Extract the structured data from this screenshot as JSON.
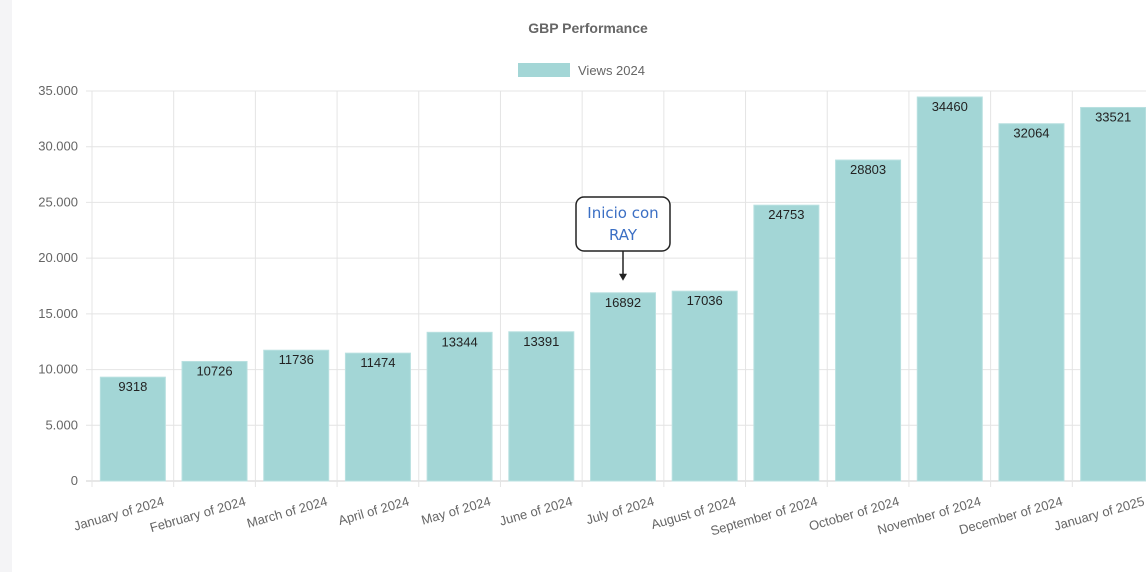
{
  "chart_data": {
    "type": "bar",
    "title": "GBP Performance",
    "categories": [
      "January of 2024",
      "February of 2024",
      "March of 2024",
      "April of 2024",
      "May of 2024",
      "June of 2024",
      "July of 2024",
      "August of 2024",
      "September of 2024",
      "October of 2024",
      "November of 2024",
      "December of 2024",
      "January of 2025"
    ],
    "series": [
      {
        "name": "Views 2024",
        "color": "#a3d6d6",
        "values": [
          9318,
          10726,
          11736,
          11474,
          13344,
          13391,
          16892,
          17036,
          24753,
          28803,
          34460,
          32064,
          33521
        ]
      }
    ],
    "ylim": [
      0,
      35000
    ],
    "yticks": [
      0,
      5000,
      10000,
      15000,
      20000,
      25000,
      30000,
      35000
    ],
    "ytick_labels": [
      "0",
      "5.000",
      "10.000",
      "15.000",
      "20.000",
      "25.000",
      "30.000",
      "35.000"
    ],
    "grid": true,
    "legend_position": "top",
    "annotation": {
      "category": "July of 2024",
      "lines": [
        "Inicio con",
        "RAY"
      ]
    }
  }
}
